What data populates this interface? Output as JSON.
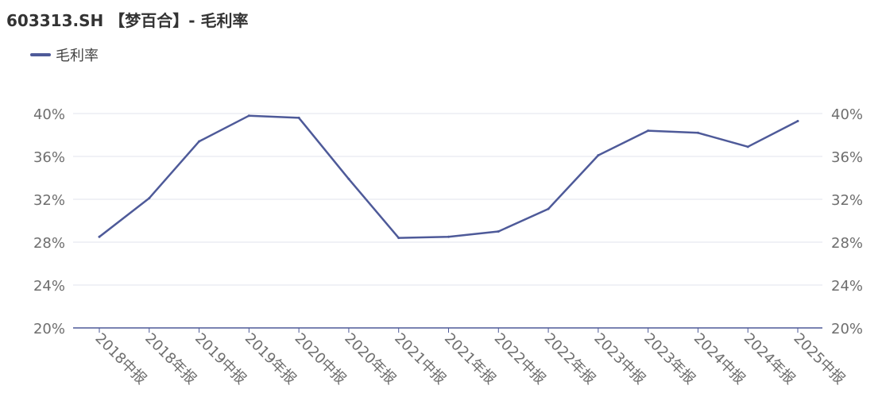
{
  "title": "603313.SH 【梦百合】- 毛利率",
  "colors": {
    "line": "#4e5a99",
    "grid": "#e0e3ec",
    "axis": "#4e5a99"
  },
  "chart_data": {
    "type": "line",
    "title": "603313.SH 【梦百合】- 毛利率",
    "categories": [
      "2018中报",
      "2018年报",
      "2019中报",
      "2019年报",
      "2020中报",
      "2020年报",
      "2021中报",
      "2021年报",
      "2022中报",
      "2022年报",
      "2023中报",
      "2023年报",
      "2024中报",
      "2024年报",
      "2025中报"
    ],
    "series": [
      {
        "name": "毛利率",
        "values": [
          28.5,
          32.1,
          37.4,
          39.8,
          39.6,
          33.9,
          28.4,
          28.5,
          29.0,
          31.1,
          36.1,
          38.4,
          38.2,
          36.9,
          39.3
        ]
      }
    ],
    "y_ticks": [
      "20%",
      "24%",
      "28%",
      "32%",
      "36%",
      "40%"
    ],
    "ylim": [
      20,
      40
    ],
    "legend_position": "top-left",
    "grid": true,
    "dual_y_axis": true
  }
}
